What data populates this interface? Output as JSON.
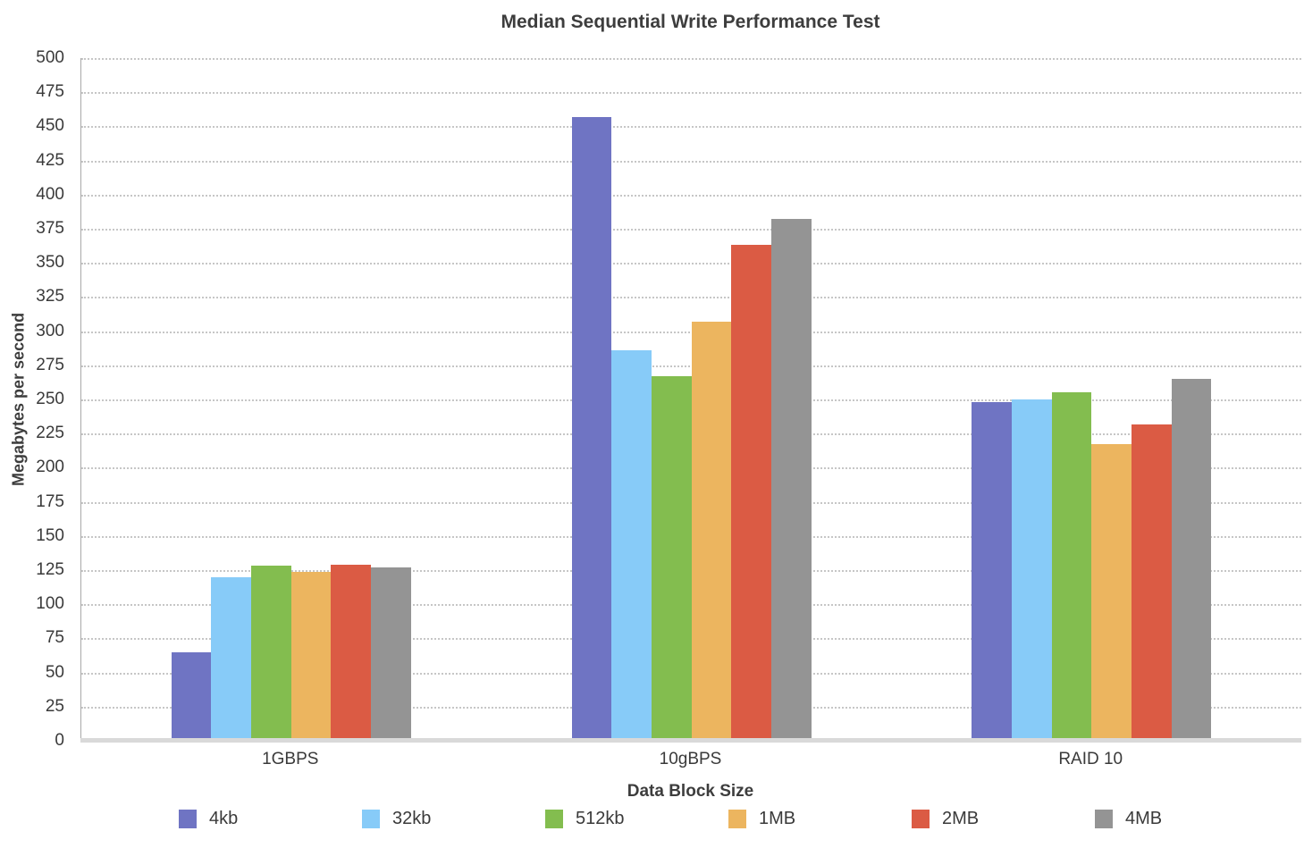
{
  "title": "Median Sequential Write Performance Test",
  "y_axis": {
    "label": "Megabytes per second"
  },
  "x_axis": {
    "label": "Data Block Size"
  },
  "chart_data": {
    "type": "bar",
    "title": "Median Sequential Write Performance Test",
    "xlabel": "Data Block Size",
    "ylabel": "Megabytes per second",
    "ylim": [
      0,
      500
    ],
    "ytick_step": 25,
    "grid": "horizontal-dotted",
    "legend_position": "bottom",
    "categories": [
      "1GBPS",
      "10gBPS",
      "RAID 10"
    ],
    "group_centers_pct": [
      17.2,
      50,
      82.8
    ],
    "series": [
      {
        "name": "4kb",
        "color": "#6F74C3",
        "values": [
          65,
          457,
          248
        ]
      },
      {
        "name": "32kb",
        "color": "#87CBF8",
        "values": [
          120,
          286,
          250
        ]
      },
      {
        "name": "512kb",
        "color": "#83BD4F",
        "values": [
          128,
          267,
          255
        ]
      },
      {
        "name": "1MB",
        "color": "#ECB55F",
        "values": [
          124,
          307,
          217
        ]
      },
      {
        "name": "2MB",
        "color": "#DB5B44",
        "values": [
          129,
          363,
          232
        ]
      },
      {
        "name": "4MB",
        "color": "#949494",
        "values": [
          127,
          382,
          265
        ]
      }
    ]
  }
}
